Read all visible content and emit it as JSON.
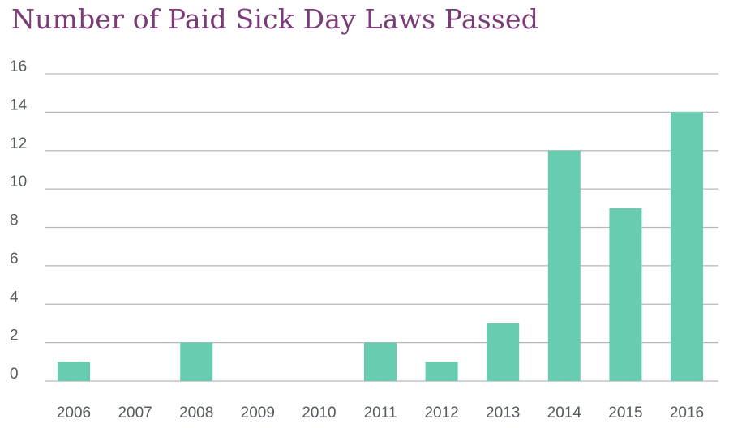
{
  "chart_data": {
    "type": "bar",
    "title": "Number of Paid Sick Day Laws Passed",
    "xlabel": "",
    "ylabel": "",
    "categories": [
      "2006",
      "2007",
      "2008",
      "2009",
      "2010",
      "2011",
      "2012",
      "2013",
      "2014",
      "2015",
      "2016"
    ],
    "values": [
      1,
      0,
      2,
      0,
      0,
      2,
      1,
      3,
      12,
      9,
      14
    ],
    "ylim": [
      0,
      16
    ],
    "yticks": [
      "0",
      "2",
      "4",
      "6",
      "8",
      "10",
      "12",
      "14",
      "16"
    ],
    "grid": true,
    "legend": "none",
    "colors": {
      "bar": "#68cdb0",
      "title": "#7b3a78",
      "grid": "#b4b7ba",
      "text": "#555a60"
    }
  }
}
